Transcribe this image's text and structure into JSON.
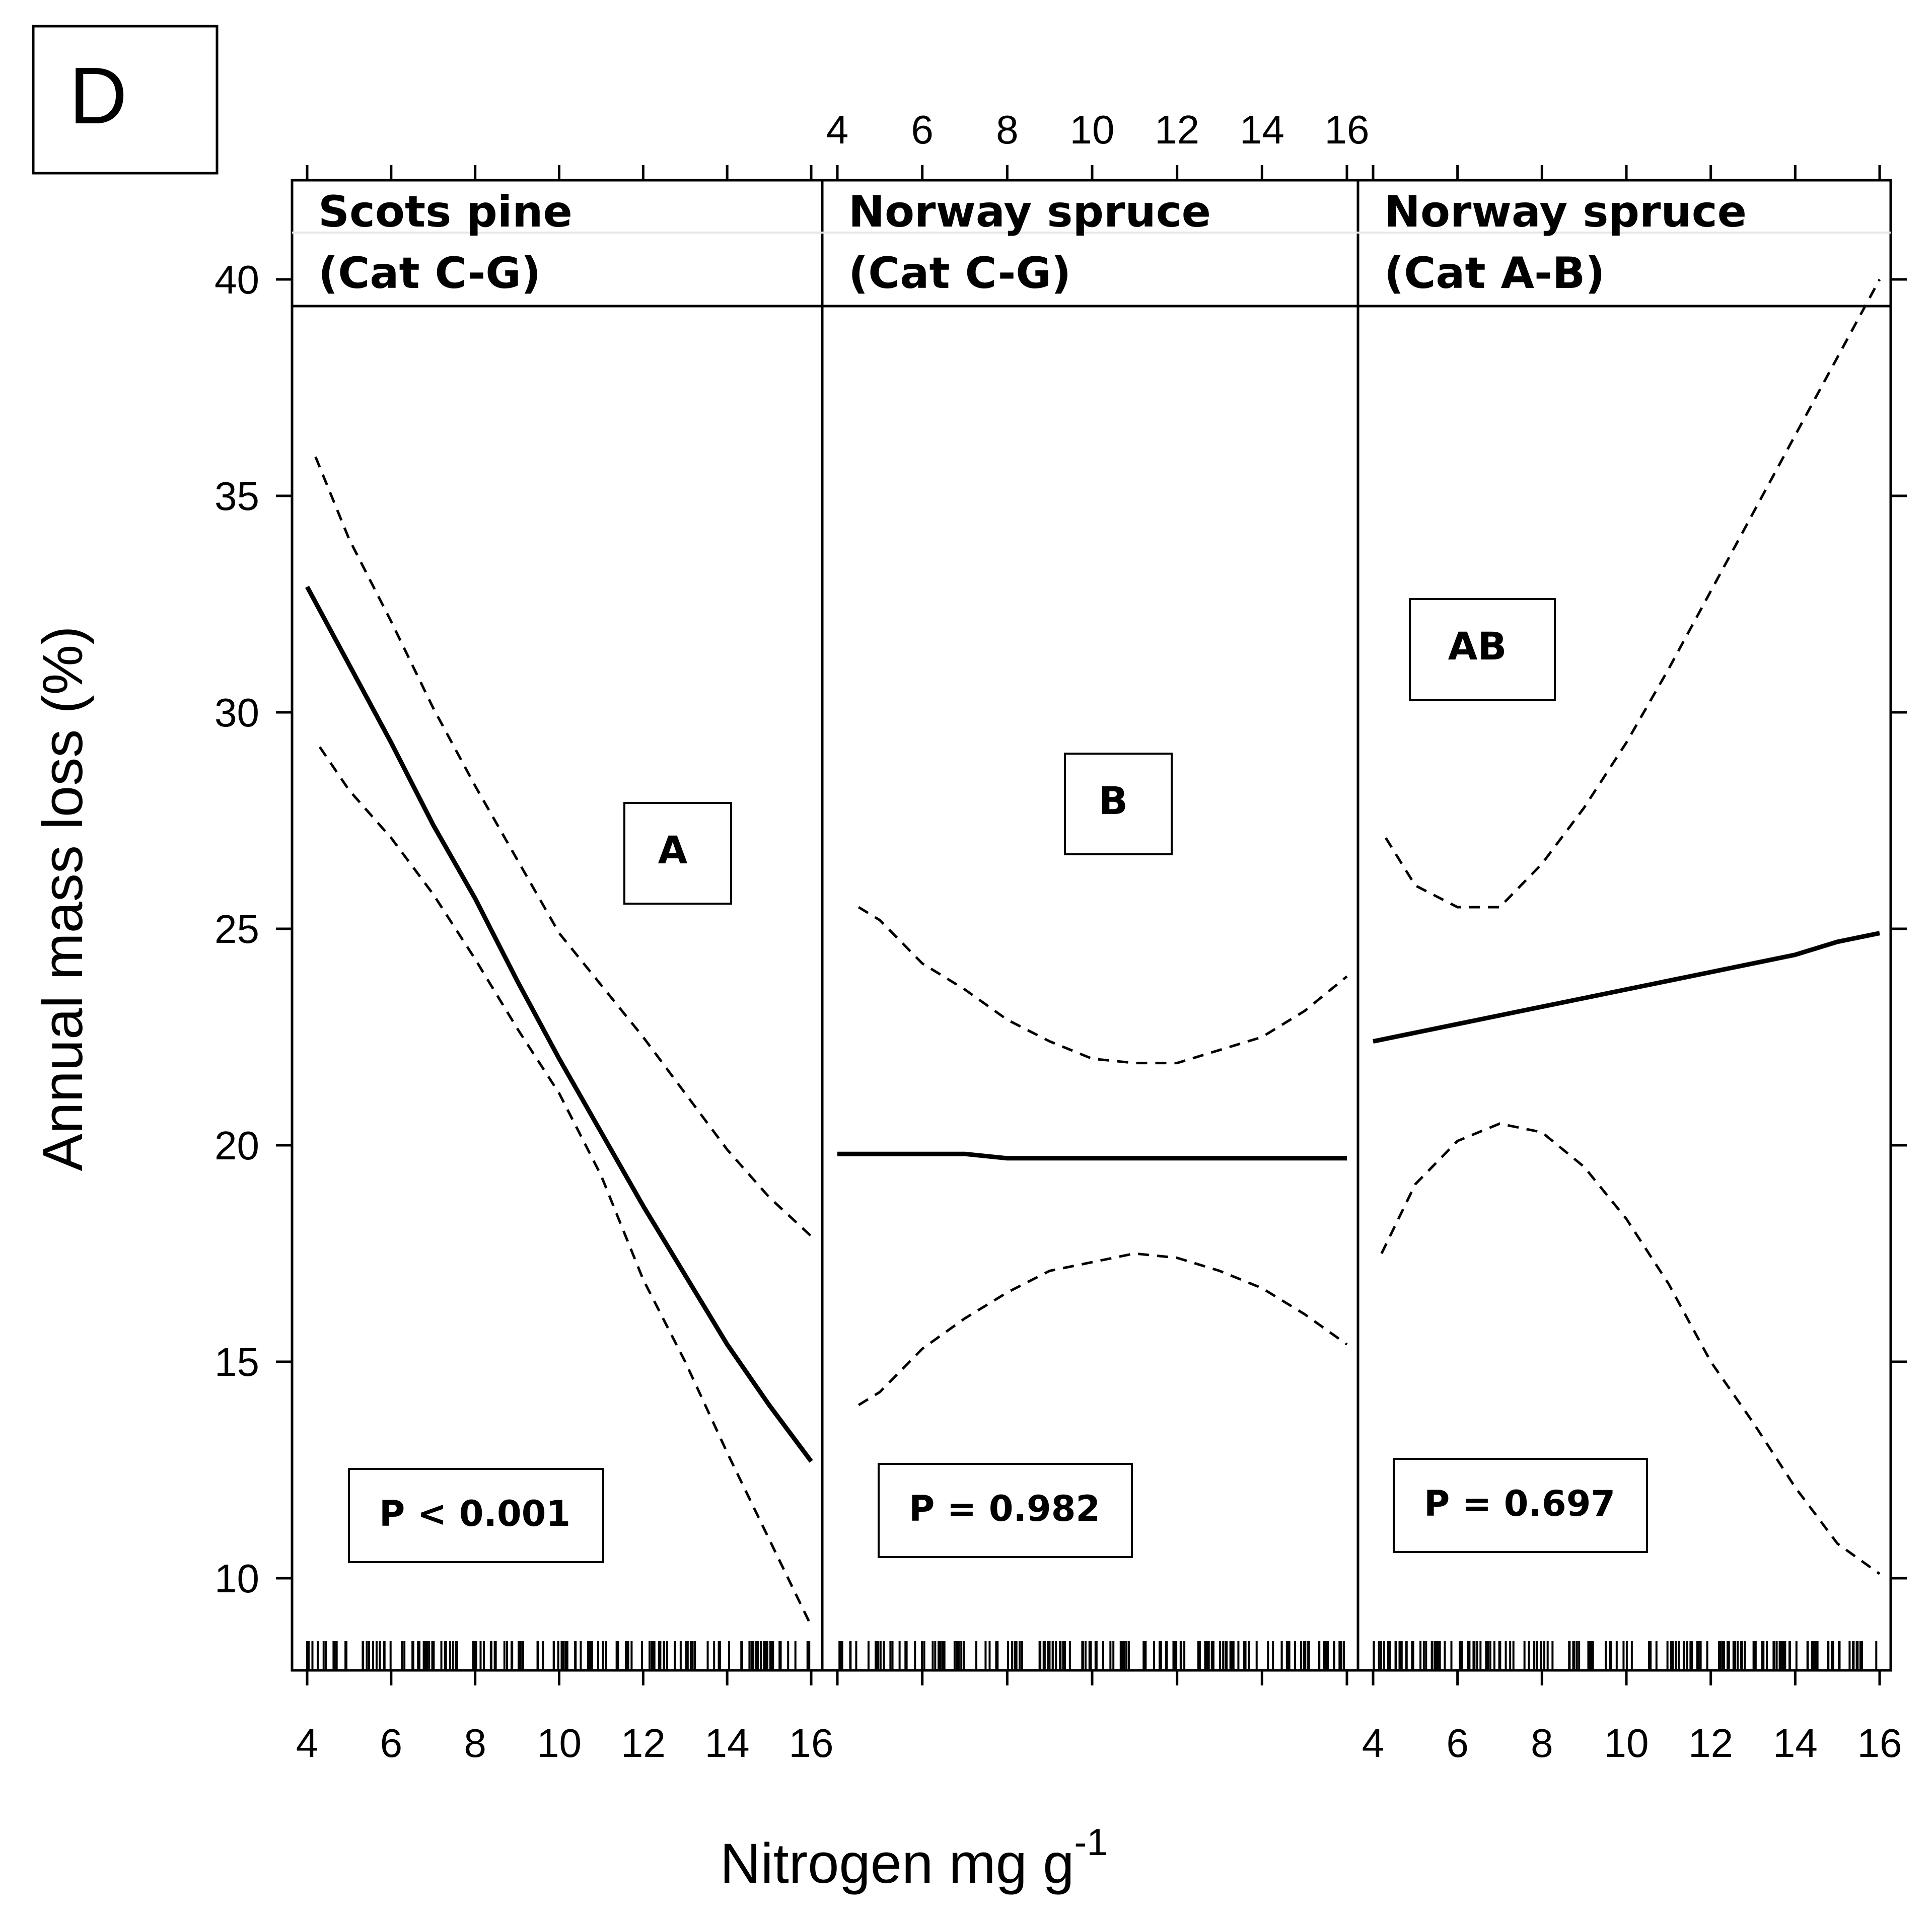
{
  "chart_data": {
    "type": "line",
    "panel_letter": "D",
    "ylabel": "Annual mass loss (%)",
    "xlabel": "Nitrogen mg g",
    "xlabel_superscript": "-1",
    "xlim": [
      3.6,
      16.3
    ],
    "ylim": [
      8,
      42.5
    ],
    "x_ticks": [
      4,
      6,
      8,
      10,
      12,
      14,
      16
    ],
    "y_ticks": [
      10,
      15,
      20,
      25,
      30,
      35,
      40
    ],
    "x_tick_labels": [
      "4",
      "6",
      "8",
      "10",
      "12",
      "14",
      "16"
    ],
    "y_tick_labels": [
      "10",
      "15",
      "20",
      "25",
      "30",
      "35",
      "40"
    ],
    "panels": [
      {
        "strip_line1": "Scots pine",
        "strip_line2": "(Cat C-G)",
        "letter": "A",
        "p_value": "P < 0.001",
        "fit": {
          "x": [
            4,
            5,
            6,
            7,
            8,
            9,
            10,
            11,
            12,
            13,
            14,
            15,
            16
          ],
          "y": [
            32.9,
            31.1,
            29.3,
            27.4,
            25.7,
            23.8,
            22.0,
            20.3,
            18.6,
            17.0,
            15.4,
            14.0,
            12.7
          ]
        },
        "upper": {
          "x": [
            4.2,
            5,
            6,
            7,
            8,
            9,
            10,
            11,
            12,
            13,
            14,
            15,
            16
          ],
          "y": [
            35.9,
            34.0,
            32.1,
            30.1,
            28.3,
            26.6,
            24.9,
            23.7,
            22.5,
            21.2,
            19.9,
            18.8,
            17.9
          ]
        },
        "lower": {
          "x": [
            4.3,
            5,
            6,
            7,
            8,
            9,
            10,
            11,
            12,
            13,
            14,
            15,
            16
          ],
          "y": [
            29.2,
            28.2,
            27.1,
            25.8,
            24.3,
            22.7,
            21.2,
            19.3,
            16.9,
            15.0,
            12.9,
            10.9,
            8.9
          ]
        }
      },
      {
        "strip_line1": "Norway spruce",
        "strip_line2": "(Cat C-G)",
        "letter": "B",
        "p_value": "P = 0.982",
        "fit": {
          "x": [
            4,
            5,
            6,
            7,
            8,
            9,
            10,
            11,
            12,
            13,
            14,
            15,
            16
          ],
          "y": [
            19.8,
            19.8,
            19.8,
            19.8,
            19.7,
            19.7,
            19.7,
            19.7,
            19.7,
            19.7,
            19.7,
            19.7,
            19.7
          ]
        },
        "upper": {
          "x": [
            4.5,
            5,
            6,
            7,
            8,
            9,
            10,
            11,
            12,
            13,
            14,
            15,
            16
          ],
          "y": [
            25.5,
            25.2,
            24.2,
            23.6,
            22.9,
            22.4,
            22.0,
            21.9,
            21.9,
            22.2,
            22.5,
            23.1,
            23.9
          ]
        },
        "lower": {
          "x": [
            4.5,
            5,
            6,
            7,
            8,
            9,
            10,
            11,
            12,
            13,
            14,
            15,
            16
          ],
          "y": [
            14.0,
            14.3,
            15.3,
            16.0,
            16.6,
            17.1,
            17.3,
            17.5,
            17.4,
            17.1,
            16.7,
            16.1,
            15.4
          ]
        }
      },
      {
        "strip_line1": "Norway spruce",
        "strip_line2": "(Cat A-B)",
        "letter": "AB",
        "p_value": "P = 0.697",
        "fit": {
          "x": [
            4,
            5,
            6,
            7,
            8,
            9,
            10,
            11,
            12,
            13,
            14,
            15,
            16
          ],
          "y": [
            22.4,
            22.6,
            22.8,
            23.0,
            23.2,
            23.4,
            23.6,
            23.8,
            24.0,
            24.2,
            24.4,
            24.7,
            24.9
          ]
        },
        "upper": {
          "x": [
            4.3,
            5,
            6,
            7,
            8,
            9,
            10,
            11,
            12,
            13,
            14,
            15,
            16
          ],
          "y": [
            27.1,
            26.0,
            25.5,
            25.5,
            26.5,
            27.8,
            29.3,
            31.0,
            32.8,
            34.6,
            36.4,
            38.2,
            40.0
          ]
        },
        "lower": {
          "x": [
            4.2,
            5,
            6,
            7,
            8,
            9,
            10,
            11,
            12,
            13,
            14,
            15,
            16
          ],
          "y": [
            17.5,
            19.1,
            20.1,
            20.5,
            20.3,
            19.5,
            18.3,
            16.8,
            15.0,
            13.6,
            12.1,
            10.8,
            10.1
          ]
        }
      }
    ]
  }
}
